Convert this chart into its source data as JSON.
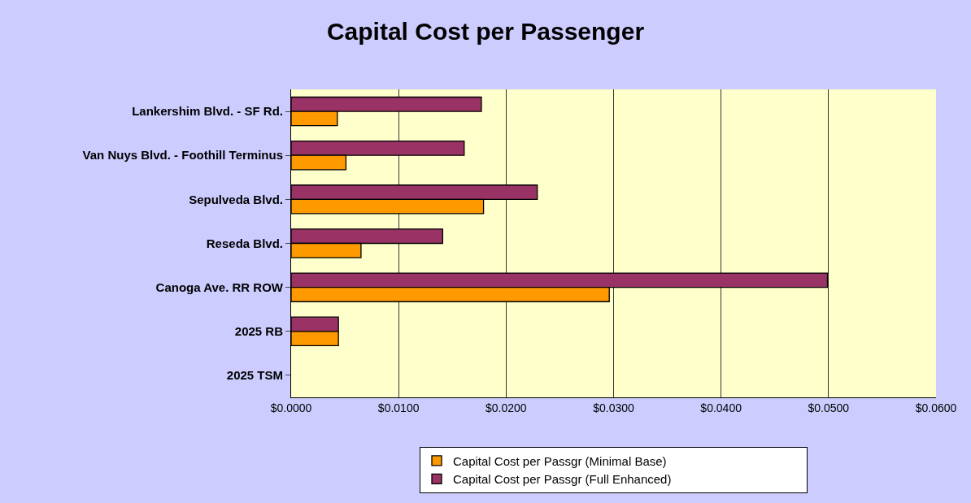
{
  "chart_data": {
    "type": "bar",
    "orientation": "horizontal",
    "title": "Capital Cost per Passenger",
    "categories": [
      "Lankershim Blvd. - SF Rd.",
      "Van Nuys Blvd. - Foothill Terminus",
      "Sepulveda Blvd.",
      "Reseda Blvd.",
      "Canoga Ave. RR ROW",
      "2025 RB",
      "2025 TSM"
    ],
    "series": [
      {
        "name": "Capital Cost per Passgr (Minimal Base)",
        "color": "#ff9900",
        "values": [
          0.0043,
          0.0051,
          0.0179,
          0.0065,
          0.0296,
          0.0044,
          0
        ]
      },
      {
        "name": "Capital Cost per Passgr (Full Enhanced)",
        "color": "#993366",
        "values": [
          0.0177,
          0.0161,
          0.0229,
          0.0141,
          0.0499,
          0.0044,
          0
        ]
      }
    ],
    "xlim": [
      0,
      0.06
    ],
    "xticks": [
      {
        "value": 0,
        "label": "$0.0000"
      },
      {
        "value": 0.01,
        "label": "$0.0100"
      },
      {
        "value": 0.02,
        "label": "$0.0200"
      },
      {
        "value": 0.03,
        "label": "$0.0300"
      },
      {
        "value": 0.04,
        "label": "$0.0400"
      },
      {
        "value": 0.05,
        "label": "$0.0500"
      },
      {
        "value": 0.06,
        "label": "$0.0600"
      }
    ],
    "grid": "x",
    "legend": "bottom"
  }
}
